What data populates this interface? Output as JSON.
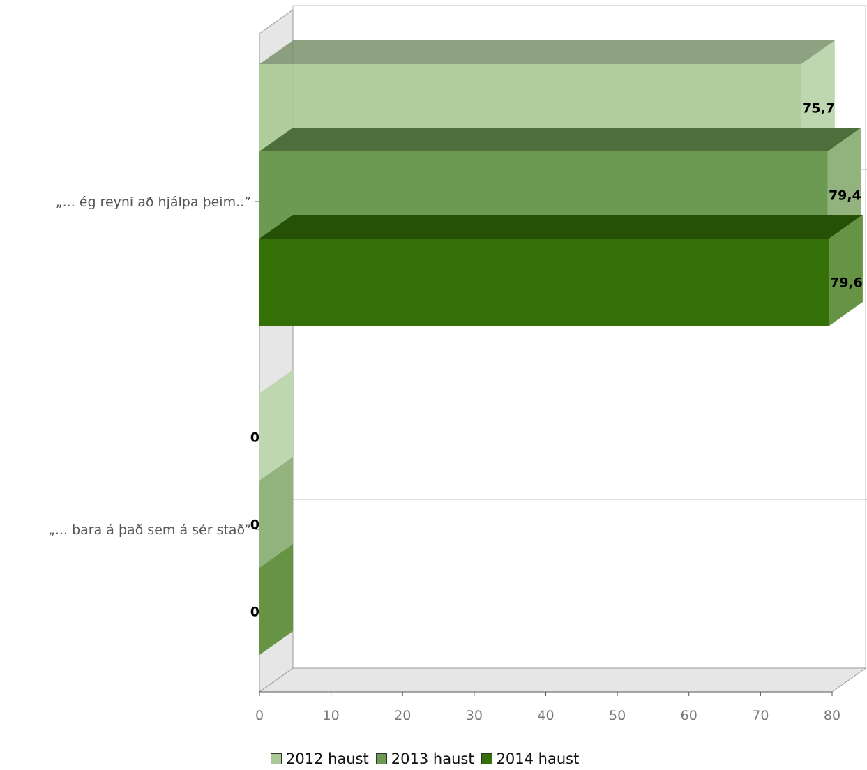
{
  "chart_data": {
    "type": "bar",
    "orientation": "horizontal",
    "categories": [
      "„... ég reyni að hjálpa þeim..”",
      "„... bara á það sem á sér stað”"
    ],
    "series": [
      {
        "name": "2012 haust",
        "values": [
          75.7,
          0
        ],
        "labels": [
          "75,7",
          "0"
        ],
        "color": "#a9c995"
      },
      {
        "name": "2013 haust",
        "values": [
          79.4,
          0
        ],
        "labels": [
          "79,4",
          "0"
        ],
        "color": "#6d9a53"
      },
      {
        "name": "2014 haust",
        "values": [
          79.6,
          0
        ],
        "labels": [
          "79,6",
          "0"
        ],
        "color": "#346f07"
      }
    ],
    "xlim": [
      0,
      80
    ],
    "xticks": [
      "0",
      "10",
      "20",
      "30",
      "40",
      "50",
      "60",
      "70",
      "80"
    ],
    "grid": true,
    "legend": "bottom",
    "style": "3d"
  }
}
